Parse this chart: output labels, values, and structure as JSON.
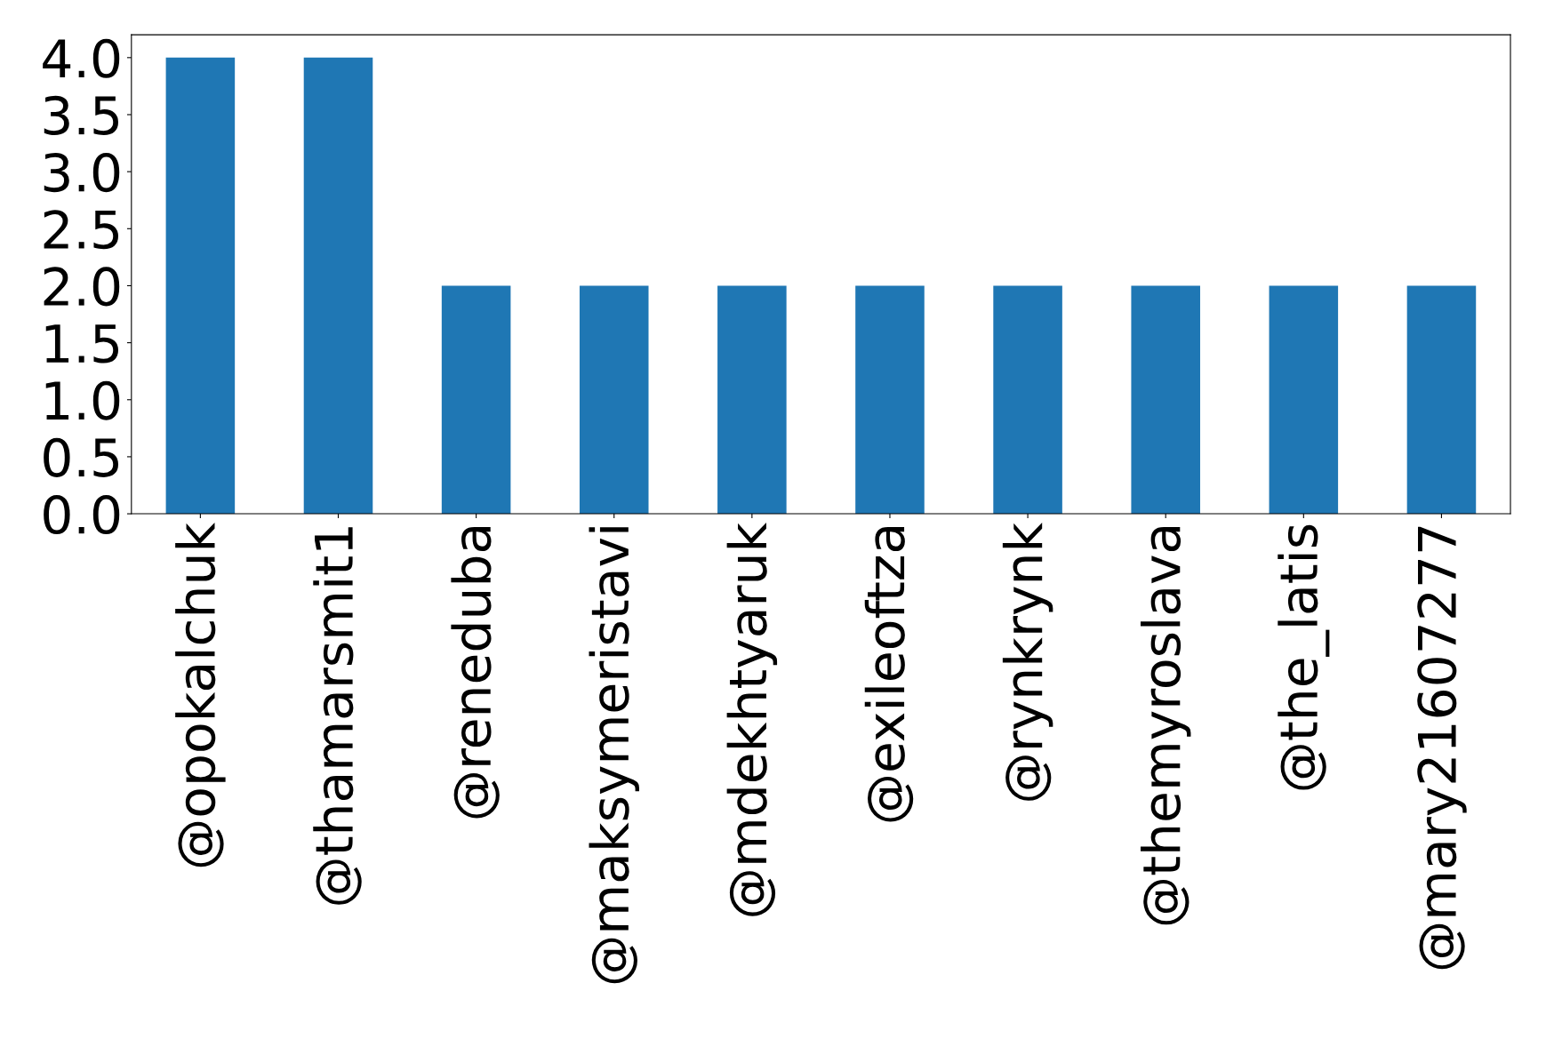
{
  "chart_data": {
    "type": "bar",
    "categories": [
      "@opokalchuk",
      "@thamarsmit1",
      "@reneduba",
      "@maksymeristavi",
      "@mdekhtyaruk",
      "@exileoftza",
      "@rynkrynk",
      "@themyroslava",
      "@the_latis",
      "@mary21607277"
    ],
    "values": [
      4,
      4,
      2,
      2,
      2,
      2,
      2,
      2,
      2,
      2
    ],
    "color": "#1f77b4",
    "ylim": [
      0,
      4.2
    ],
    "yticks": [
      {
        "value": 0,
        "label": "0.0"
      },
      {
        "value": 0.5,
        "label": "0.5"
      },
      {
        "value": 1,
        "label": "1.0"
      },
      {
        "value": 1.5,
        "label": "1.5"
      },
      {
        "value": 2,
        "label": "2.0"
      },
      {
        "value": 2.5,
        "label": "2.5"
      },
      {
        "value": 3,
        "label": "3.0"
      },
      {
        "value": 3.5,
        "label": "3.5"
      },
      {
        "value": 4,
        "label": "4.0"
      }
    ],
    "grid": false,
    "legend": false
  }
}
